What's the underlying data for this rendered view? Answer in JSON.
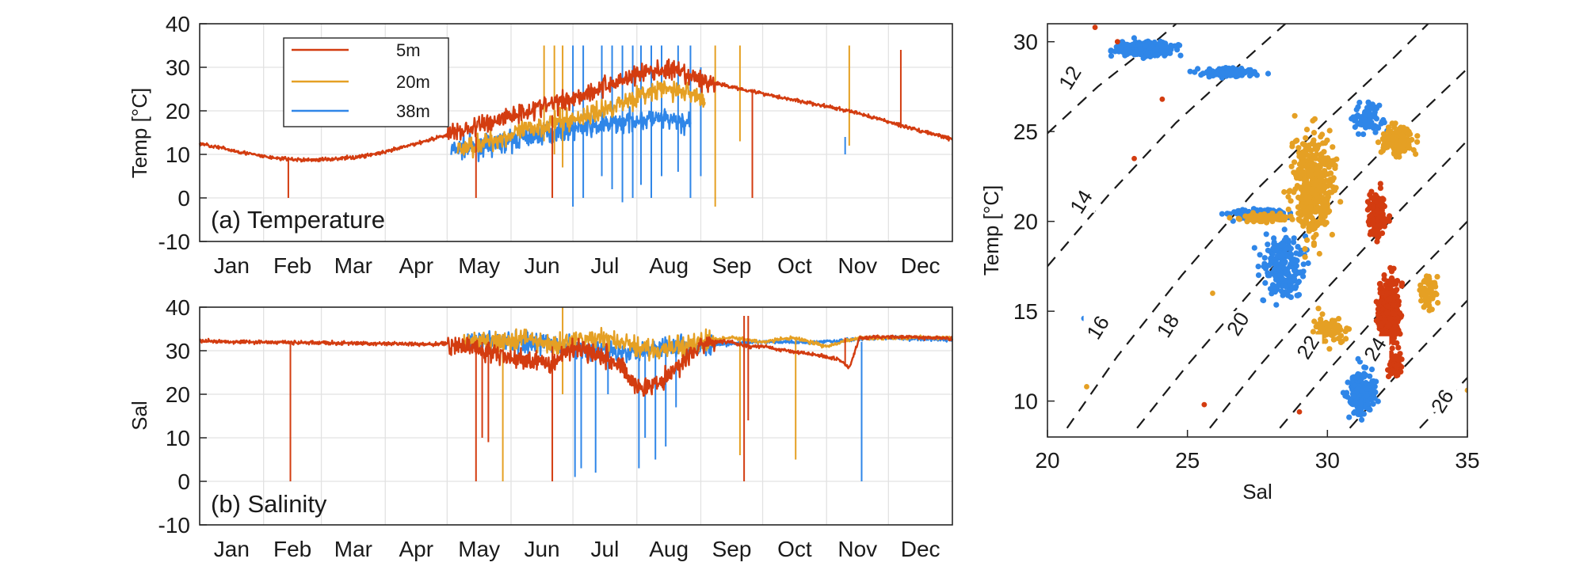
{
  "chart_data": [
    {
      "type": "line",
      "panel": "a",
      "title": "(a) Temperature",
      "ylabel": "Temp [°C]",
      "xlabel": "",
      "ylim": [
        -10,
        40
      ],
      "yticks": [
        -10,
        0,
        10,
        20,
        30,
        40
      ],
      "xlim": [
        0,
        365
      ],
      "month_labels": [
        "Jan",
        "Feb",
        "Mar",
        "Apr",
        "May",
        "Jun",
        "Jul",
        "Aug",
        "Sep",
        "Oct",
        "Nov",
        "Dec"
      ],
      "month_starts": [
        0,
        31,
        59,
        90,
        120,
        151,
        181,
        212,
        243,
        273,
        304,
        334
      ],
      "grid": true,
      "legend": {
        "placement": "top-left",
        "entries": [
          "5m",
          "20m",
          "38m"
        ]
      },
      "series": [
        {
          "name": "38m",
          "color": "#2f86e8",
          "x": [
            122,
            130,
            140,
            150,
            160,
            170,
            181,
            195,
            212,
            225,
            238
          ],
          "y": [
            11,
            11.5,
            12,
            13,
            14,
            15,
            16,
            16.5,
            18,
            18,
            17
          ],
          "spikes": [
            [
              181,
              -2,
              35
            ],
            [
              186,
              0,
              35
            ],
            [
              195,
              5,
              35
            ],
            [
              200,
              2,
              35
            ],
            [
              205,
              -1,
              35
            ],
            [
              210,
              0,
              35
            ],
            [
              214,
              3,
              35
            ],
            [
              219,
              0,
              35
            ],
            [
              224,
              5,
              35
            ],
            [
              232,
              6,
              35
            ],
            [
              238,
              0,
              35
            ],
            [
              243,
              5,
              30
            ],
            [
              313,
              10,
              14
            ]
          ]
        },
        {
          "name": "20m",
          "color": "#e5a024",
          "x": [
            125,
            140,
            155,
            168,
            181,
            195,
            210,
            225,
            240,
            245
          ],
          "y": [
            11,
            13,
            15,
            17,
            18,
            20,
            23,
            25,
            24,
            22
          ],
          "spikes": [
            [
              167,
              13,
              35
            ],
            [
              172,
              10,
              35
            ],
            [
              176,
              7,
              35
            ],
            [
              250,
              -2,
              35
            ],
            [
              262,
              13,
              35
            ],
            [
              315,
              12,
              35
            ]
          ]
        },
        {
          "name": "5m",
          "color": "#d33c10",
          "x": [
            0,
            15,
            31,
            40,
            50,
            59,
            75,
            90,
            105,
            120,
            135,
            151,
            166,
            181,
            196,
            212,
            227,
            243,
            258,
            273,
            288,
            304,
            319,
            334,
            349,
            365
          ],
          "y": [
            12.5,
            11,
            9.5,
            9,
            8.7,
            8.8,
            9.3,
            10.5,
            12.5,
            14.5,
            16.5,
            19,
            21,
            23,
            25.5,
            28.5,
            29.5,
            27,
            25.5,
            24,
            22.5,
            21,
            19.5,
            17.5,
            15.5,
            13.5
          ],
          "spikes": [
            [
              43,
              0,
              9
            ],
            [
              134,
              0,
              14
            ],
            [
              171,
              0,
              19
            ],
            [
              268,
              0,
              25
            ],
            [
              340,
              16,
              34
            ]
          ]
        }
      ]
    },
    {
      "type": "line",
      "panel": "b",
      "title": "(b) Salinity",
      "ylabel": "Sal",
      "xlabel": "",
      "ylim": [
        -10,
        40
      ],
      "yticks": [
        -10,
        0,
        10,
        20,
        30,
        40
      ],
      "xlim": [
        0,
        365
      ],
      "month_labels": [
        "Jan",
        "Feb",
        "Mar",
        "Apr",
        "May",
        "Jun",
        "Jul",
        "Aug",
        "Sep",
        "Oct",
        "Nov",
        "Dec"
      ],
      "month_starts": [
        0,
        31,
        59,
        90,
        120,
        151,
        181,
        212,
        243,
        273,
        304,
        334
      ],
      "grid": true,
      "series": [
        {
          "name": "38m",
          "color": "#2f86e8",
          "x": [
            130,
            150,
            165,
            181,
            195,
            210,
            225,
            240,
            270,
            300,
            330,
            365
          ],
          "y": [
            32,
            32,
            32,
            31,
            30,
            30,
            31,
            31,
            32,
            32,
            33,
            32.5
          ],
          "spikes": [
            [
              182,
              1,
              32
            ],
            [
              185,
              3,
              30
            ],
            [
              192,
              2,
              31
            ],
            [
              198,
              20,
              31
            ],
            [
              205,
              25,
              31
            ],
            [
              213,
              3,
              31
            ],
            [
              216,
              10,
              31
            ],
            [
              221,
              5,
              31
            ],
            [
              226,
              8,
              31
            ],
            [
              231,
              17,
              31
            ],
            [
              321,
              0,
              32
            ]
          ]
        },
        {
          "name": "20m",
          "color": "#e5a024",
          "x": [
            128,
            140,
            150,
            160,
            170,
            181,
            195,
            210,
            225,
            243,
            258,
            273,
            288,
            304,
            320,
            340,
            365
          ],
          "y": [
            32,
            32,
            32.5,
            33,
            31,
            32,
            33,
            31,
            30,
            32,
            33,
            32,
            33,
            31,
            33,
            33,
            33
          ],
          "spikes": [
            [
              147,
              0,
              32
            ],
            [
              176,
              20,
              40
            ],
            [
              262,
              6,
              33
            ],
            [
              289,
              5,
              33
            ]
          ]
        },
        {
          "name": "5m",
          "color": "#d33c10",
          "x": [
            0,
            31,
            59,
            90,
            120,
            130,
            145,
            160,
            170,
            181,
            196,
            205,
            212,
            222,
            235,
            243,
            250,
            258,
            265,
            273,
            285,
            300,
            310,
            315,
            320,
            340,
            365
          ],
          "y": [
            32.2,
            32,
            31.8,
            31.6,
            31.5,
            31,
            29,
            27.5,
            27,
            31,
            29,
            26,
            22,
            22,
            28,
            31,
            32,
            32,
            31,
            31,
            30,
            29,
            28,
            26,
            33,
            33.2,
            32.8
          ],
          "spikes": [
            [
              44,
              0,
              32
            ],
            [
              134,
              0,
              32
            ],
            [
              137,
              10,
              32
            ],
            [
              140,
              9,
              32
            ],
            [
              171,
              0,
              31
            ],
            [
              264,
              0,
              38
            ],
            [
              266,
              14,
              38
            ],
            [
              313,
              27,
              33
            ]
          ]
        }
      ]
    },
    {
      "type": "scatter",
      "title": "",
      "xlabel": "Sal",
      "ylabel": "Temp [°C]",
      "xlim": [
        20,
        35
      ],
      "ylim": [
        8,
        31
      ],
      "xticks": [
        20,
        25,
        30,
        35
      ],
      "yticks": [
        10,
        15,
        20,
        25,
        30
      ],
      "grid": false,
      "clusters": [
        {
          "name": "38m",
          "color": "#2f86e8",
          "center": [
            23.5,
            29.6
          ],
          "spread": [
            1.3,
            0.5
          ],
          "count": 260
        },
        {
          "name": "38m",
          "color": "#2f86e8",
          "center": [
            26.5,
            28.3
          ],
          "spread": [
            1.5,
            0.3
          ],
          "count": 120
        },
        {
          "name": "38m",
          "color": "#2f86e8",
          "center": [
            27.5,
            20.4
          ],
          "spread": [
            1.2,
            0.35
          ],
          "count": 160
        },
        {
          "name": "38m",
          "color": "#2f86e8",
          "center": [
            28.4,
            17.5
          ],
          "spread": [
            0.9,
            2.2
          ],
          "count": 220
        },
        {
          "name": "38m",
          "color": "#2f86e8",
          "center": [
            31.2,
            10.5
          ],
          "spread": [
            0.6,
            1.6
          ],
          "count": 220
        },
        {
          "name": "38m",
          "color": "#2f86e8",
          "center": [
            31.5,
            25.8
          ],
          "spread": [
            0.6,
            1.0
          ],
          "count": 70
        },
        {
          "name": "20m",
          "color": "#e5a024",
          "center": [
            29.5,
            22.0
          ],
          "spread": [
            0.9,
            3.5
          ],
          "count": 420
        },
        {
          "name": "20m",
          "color": "#e5a024",
          "center": [
            27.8,
            20.2
          ],
          "spread": [
            1.2,
            0.3
          ],
          "count": 90
        },
        {
          "name": "20m",
          "color": "#e5a024",
          "center": [
            32.5,
            24.5
          ],
          "spread": [
            0.7,
            1.0
          ],
          "count": 150
        },
        {
          "name": "20m",
          "color": "#e5a024",
          "center": [
            30.0,
            14.0
          ],
          "spread": [
            0.8,
            1.0
          ],
          "count": 70
        },
        {
          "name": "20m",
          "color": "#e5a024",
          "center": [
            33.6,
            16.0
          ],
          "spread": [
            0.4,
            1.2
          ],
          "count": 60
        },
        {
          "name": "5m",
          "color": "#d33c10",
          "center": [
            32.2,
            15.0
          ],
          "spread": [
            0.5,
            2.4
          ],
          "count": 320
        },
        {
          "name": "5m",
          "color": "#d33c10",
          "center": [
            31.8,
            20.5
          ],
          "spread": [
            0.4,
            1.6
          ],
          "count": 160
        },
        {
          "name": "5m",
          "color": "#d33c10",
          "center": [
            32.4,
            12.0
          ],
          "spread": [
            0.35,
            0.8
          ],
          "count": 80
        }
      ],
      "outliers": [
        {
          "color": "#d33c10",
          "x": 21.7,
          "y": 30.8
        },
        {
          "color": "#d33c10",
          "x": 22.5,
          "y": 30.0
        },
        {
          "color": "#d33c10",
          "x": 24.1,
          "y": 26.8
        },
        {
          "color": "#d33c10",
          "x": 23.1,
          "y": 23.5
        },
        {
          "color": "#d33c10",
          "x": 25.6,
          "y": 9.8
        },
        {
          "color": "#d33c10",
          "x": 29.0,
          "y": 9.4
        },
        {
          "color": "#e5a024",
          "x": 21.4,
          "y": 10.8
        },
        {
          "color": "#e5a024",
          "x": 35.0,
          "y": 10.6
        },
        {
          "color": "#e5a024",
          "x": 25.9,
          "y": 16.0
        },
        {
          "color": "#2f86e8",
          "x": 21.3,
          "y": 14.6
        }
      ],
      "density_contours": [
        {
          "label": "12",
          "points": [
            [
              20.0,
              24.9
            ],
            [
              21.8,
              27.5
            ],
            [
              24.0,
              30.2
            ],
            [
              24.6,
              31.0
            ]
          ],
          "label_at": [
            20.8,
            28.0
          ]
        },
        {
          "label": "14",
          "points": [
            [
              20.0,
              17.5
            ],
            [
              22.2,
              21.5
            ],
            [
              24.6,
              25.5
            ],
            [
              27.2,
              29.2
            ],
            [
              28.5,
              31.0
            ]
          ],
          "label_at": [
            21.2,
            21.1
          ]
        },
        {
          "label": "16",
          "points": [
            [
              20.7,
              8.5
            ],
            [
              22.5,
              12.5
            ],
            [
              24.8,
              17.0
            ],
            [
              27.3,
              21.5
            ],
            [
              29.9,
              25.5
            ],
            [
              32.3,
              29.0
            ],
            [
              33.6,
              31.0
            ]
          ],
          "label_at": [
            21.8,
            14.1
          ]
        },
        {
          "label": "18",
          "points": [
            [
              23.2,
              8.5
            ],
            [
              25.0,
              12.0
            ],
            [
              27.5,
              16.5
            ],
            [
              30.0,
              20.8
            ],
            [
              32.5,
              24.8
            ],
            [
              35.0,
              28.5
            ]
          ],
          "label_at": [
            24.3,
            14.2
          ]
        },
        {
          "label": "20",
          "points": [
            [
              25.8,
              8.5
            ],
            [
              27.6,
              12.0
            ],
            [
              30.0,
              16.3
            ],
            [
              32.4,
              20.3
            ],
            [
              35.0,
              24.5
            ]
          ],
          "label_at": [
            26.8,
            14.3
          ]
        },
        {
          "label": "22",
          "points": [
            [
              28.3,
              8.5
            ],
            [
              30.2,
              12.0
            ],
            [
              32.5,
              16.0
            ],
            [
              35.0,
              20.0
            ]
          ],
          "label_at": [
            29.3,
            13.0
          ]
        },
        {
          "label": "24",
          "points": [
            [
              30.8,
              8.5
            ],
            [
              32.5,
              11.5
            ],
            [
              35.0,
              15.6
            ]
          ],
          "label_at": [
            31.7,
            12.9
          ]
        },
        {
          "label": "26",
          "points": [
            [
              33.3,
              8.5
            ],
            [
              35.0,
              11.3
            ]
          ],
          "label_at": [
            34.1,
            10.0
          ]
        }
      ]
    }
  ]
}
